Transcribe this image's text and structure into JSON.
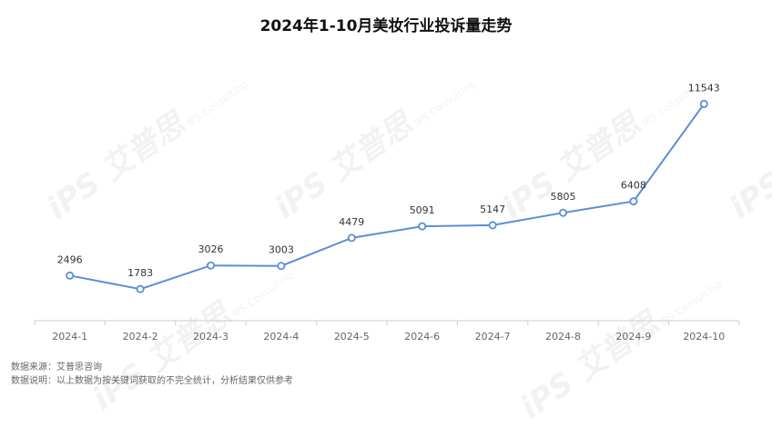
{
  "title": "2024年1-10月美妆行业投诉量走势",
  "source_note": "数据来源：艾普思咨询",
  "data_note": "数据说明：以上数据为按关键词获取的不完全统计，分析结果仅供参考",
  "watermark": {
    "mark": "iPS",
    "brand": "艾普思",
    "sub": "IPS Consulting"
  },
  "colors": {
    "line": "#5b8ed6",
    "axis": "#cccccc",
    "label": "#333333",
    "tick": "#666666"
  },
  "chart_data": {
    "type": "line",
    "title": "2024年1-10月美妆行业投诉量走势",
    "categories": [
      "2024-1",
      "2024-2",
      "2024-3",
      "2024-4",
      "2024-5",
      "2024-6",
      "2024-7",
      "2024-8",
      "2024-9",
      "2024-10"
    ],
    "values": [
      2496,
      1783,
      3026,
      3003,
      4479,
      5091,
      5147,
      5805,
      6408,
      11543
    ],
    "xlabel": "",
    "ylabel": "",
    "grid": false,
    "data_labels": true
  }
}
